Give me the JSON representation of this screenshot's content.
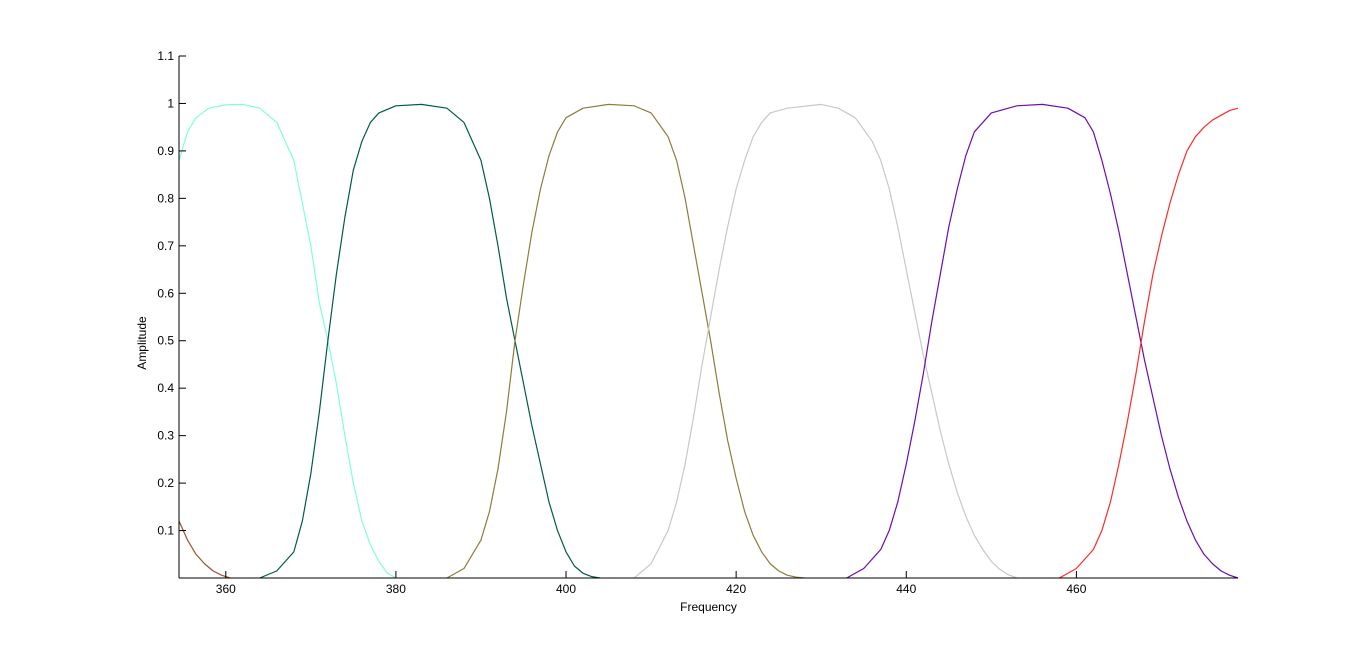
{
  "chart_data": {
    "type": "line",
    "title": "",
    "xlabel": "Frequency",
    "ylabel": "Amplitude",
    "xlim": [
      354.5,
      479
    ],
    "ylim": [
      0,
      1.1
    ],
    "grid": false,
    "xticks": [
      360,
      380,
      400,
      420,
      440,
      460
    ],
    "yticks": [
      0.1,
      0.2,
      0.3,
      0.4,
      0.5,
      0.6,
      0.7,
      0.8,
      0.9,
      1,
      1.1
    ],
    "series": [
      {
        "color": "#a0522d",
        "x": [
          354.5,
          355.5,
          356.5,
          357.5,
          358.5,
          359.5,
          360.5
        ],
        "y": [
          0.12,
          0.08,
          0.05,
          0.03,
          0.015,
          0.006,
          0.0
        ]
      },
      {
        "color": "#7fffd4",
        "x": [
          354.5,
          355.5,
          356.5,
          358,
          360,
          362,
          364,
          366,
          368,
          370,
          371,
          372,
          373,
          374,
          375,
          376,
          377,
          378,
          379,
          380
        ],
        "y": [
          0.88,
          0.94,
          0.97,
          0.99,
          0.997,
          0.998,
          0.99,
          0.96,
          0.88,
          0.7,
          0.58,
          0.5,
          0.41,
          0.3,
          0.2,
          0.12,
          0.07,
          0.035,
          0.01,
          0.0
        ]
      },
      {
        "color": "#005a4a",
        "x": [
          364,
          366,
          368,
          369,
          370,
          371,
          372,
          373,
          374,
          375,
          376,
          377,
          378,
          380,
          383,
          386,
          388,
          390,
          391,
          392,
          393,
          394,
          395,
          396,
          397,
          398,
          399,
          400,
          401,
          402,
          403,
          404
        ],
        "y": [
          0.0,
          0.015,
          0.055,
          0.12,
          0.22,
          0.35,
          0.5,
          0.64,
          0.76,
          0.86,
          0.92,
          0.96,
          0.98,
          0.995,
          0.998,
          0.99,
          0.96,
          0.88,
          0.8,
          0.7,
          0.59,
          0.5,
          0.41,
          0.32,
          0.24,
          0.16,
          0.1,
          0.055,
          0.025,
          0.01,
          0.003,
          0.0
        ]
      },
      {
        "color": "#8b7d3a",
        "x": [
          386,
          388,
          390,
          391,
          392,
          393,
          394,
          395,
          396,
          397,
          398,
          399,
          400,
          402,
          405,
          408,
          410,
          412,
          413,
          414,
          415,
          416,
          417,
          418,
          419,
          420,
          421,
          422,
          423,
          424,
          425,
          426,
          427,
          428
        ],
        "y": [
          0.0,
          0.02,
          0.08,
          0.14,
          0.23,
          0.35,
          0.5,
          0.62,
          0.73,
          0.82,
          0.89,
          0.94,
          0.97,
          0.99,
          0.998,
          0.995,
          0.98,
          0.93,
          0.88,
          0.8,
          0.7,
          0.6,
          0.5,
          0.39,
          0.29,
          0.21,
          0.14,
          0.09,
          0.055,
          0.03,
          0.015,
          0.006,
          0.002,
          0.0
        ]
      },
      {
        "color": "#c8c8c8",
        "x": [
          408,
          410,
          412,
          413,
          414,
          415,
          416,
          417,
          418,
          419,
          420,
          421,
          422,
          423,
          424,
          426,
          430,
          432,
          434,
          436,
          437,
          438,
          439,
          440,
          441,
          442,
          443,
          444,
          445,
          446,
          447,
          448,
          449,
          450,
          451,
          452,
          453
        ],
        "y": [
          0.0,
          0.03,
          0.1,
          0.16,
          0.24,
          0.34,
          0.45,
          0.55,
          0.65,
          0.74,
          0.82,
          0.88,
          0.93,
          0.96,
          0.98,
          0.99,
          0.998,
          0.99,
          0.97,
          0.92,
          0.88,
          0.82,
          0.74,
          0.65,
          0.56,
          0.47,
          0.39,
          0.31,
          0.24,
          0.18,
          0.13,
          0.09,
          0.06,
          0.035,
          0.018,
          0.007,
          0.0
        ]
      },
      {
        "color": "#6a0dad",
        "x": [
          433,
          435,
          437,
          438,
          439,
          440,
          441,
          442,
          443,
          444,
          445,
          446,
          447,
          448,
          450,
          453,
          456,
          459,
          461,
          462,
          463,
          464,
          465,
          466,
          467,
          468,
          469,
          470,
          471,
          472,
          473,
          474,
          475,
          476,
          477,
          478,
          479
        ],
        "y": [
          0.0,
          0.02,
          0.06,
          0.1,
          0.16,
          0.24,
          0.33,
          0.43,
          0.54,
          0.64,
          0.74,
          0.82,
          0.89,
          0.94,
          0.98,
          0.995,
          0.998,
          0.99,
          0.97,
          0.94,
          0.88,
          0.81,
          0.73,
          0.64,
          0.55,
          0.46,
          0.38,
          0.3,
          0.23,
          0.17,
          0.12,
          0.08,
          0.05,
          0.03,
          0.015,
          0.006,
          0.0
        ]
      },
      {
        "color": "#ff2a2a",
        "x": [
          458,
          460,
          461,
          462,
          463,
          464,
          465,
          466,
          467,
          468,
          469,
          470,
          471,
          472,
          473,
          474,
          475,
          476,
          477,
          478,
          479
        ],
        "y": [
          0.0,
          0.02,
          0.04,
          0.06,
          0.1,
          0.16,
          0.24,
          0.33,
          0.43,
          0.54,
          0.64,
          0.72,
          0.79,
          0.85,
          0.9,
          0.93,
          0.95,
          0.965,
          0.975,
          0.985,
          0.99
        ]
      }
    ]
  }
}
